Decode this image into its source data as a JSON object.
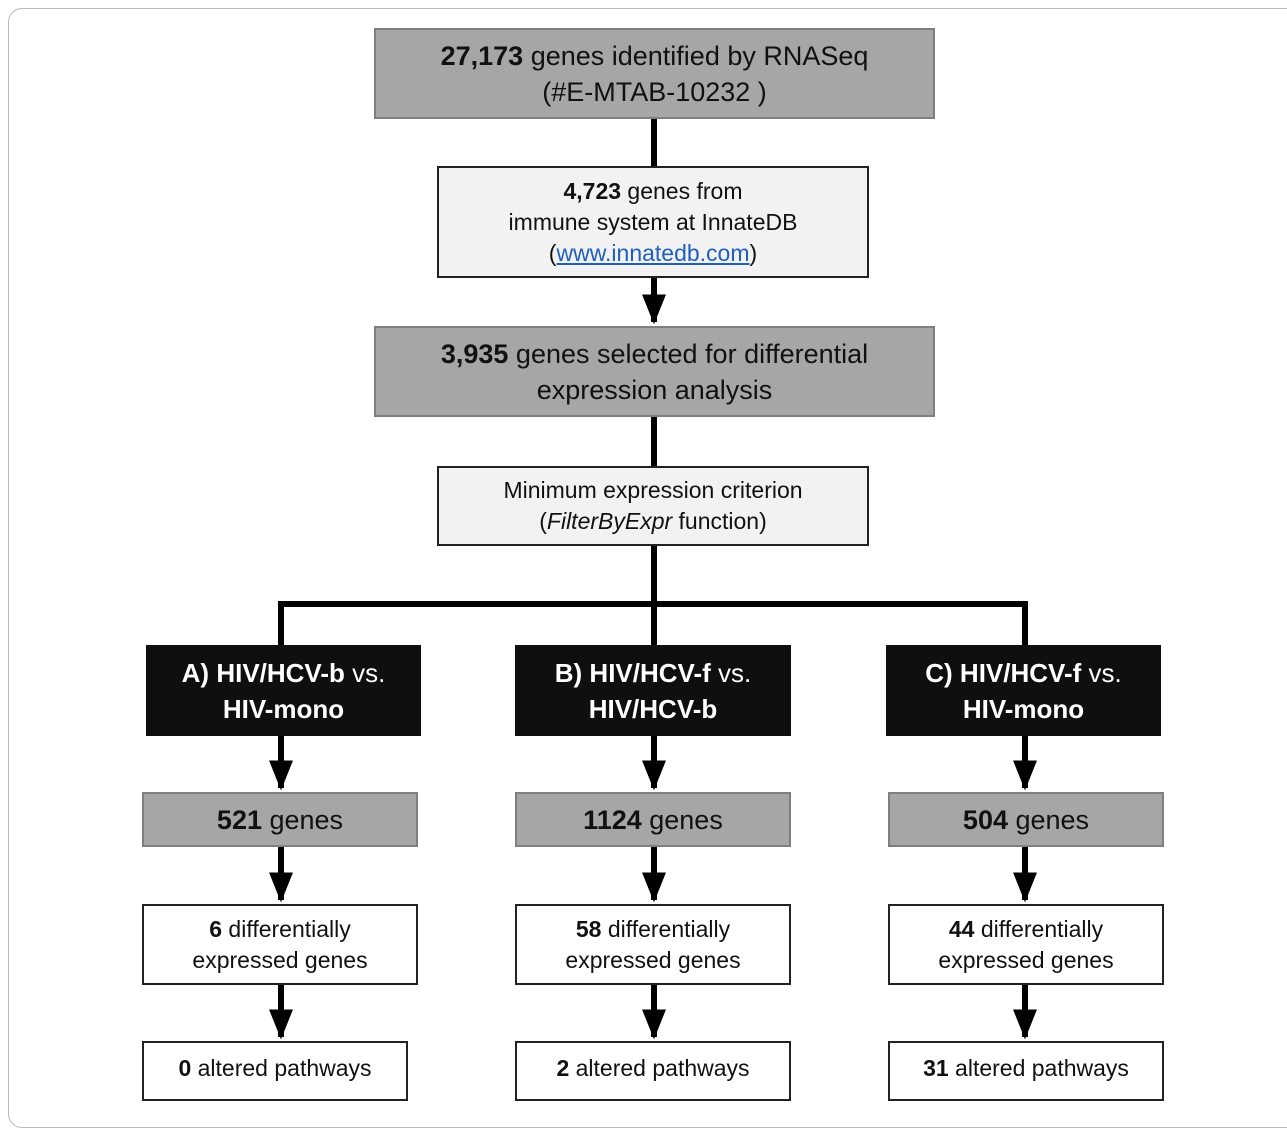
{
  "top_box": {
    "count": "27,173",
    "text": " genes identified by RNASeq",
    "line2": "(#E-MTAB-10232 )"
  },
  "innatedb_box": {
    "count": "4,723",
    "text": " genes from",
    "line2": "immune system at InnateDB",
    "open": "(",
    "link": "www.innatedb.com",
    "close": ")"
  },
  "selected_box": {
    "count": "3,935",
    "text": " genes selected for differential",
    "line2": "expression analysis"
  },
  "criterion_box": {
    "line1": "Minimum expression criterion",
    "open": "(",
    "func": "FilterByExpr",
    "rest": " function)"
  },
  "branches": [
    {
      "title_bold": "A) HIV/HCV-b",
      "vs": " vs.",
      "line2": "HIV-mono",
      "genes_count": "521",
      "genes_text": " genes",
      "de_count": "6",
      "de_text": " differentially",
      "de_line2": "expressed genes",
      "path_count": "0",
      "path_text": " altered pathways"
    },
    {
      "title_bold": "B) HIV/HCV-f",
      "vs": " vs.",
      "line2": "HIV/HCV-b",
      "genes_count": "1124",
      "genes_text": " genes",
      "de_count": "58",
      "de_text": " differentially",
      "de_line2": "expressed genes",
      "path_count": "2",
      "path_text": " altered pathways"
    },
    {
      "title_bold": "C) HIV/HCV-f",
      "vs": " vs.",
      "line2": "HIV-mono",
      "genes_count": "504",
      "genes_text": " genes",
      "de_count": "44",
      "de_text": " differentially",
      "de_line2": "expressed genes",
      "path_count": "31",
      "path_text": " altered pathways"
    }
  ],
  "colors": {
    "gray_box": "#a6a6a6",
    "light_box": "#f2f2f2",
    "group_box": "#0f0f0f",
    "link": "#1f5fbf",
    "line": "#000000"
  }
}
